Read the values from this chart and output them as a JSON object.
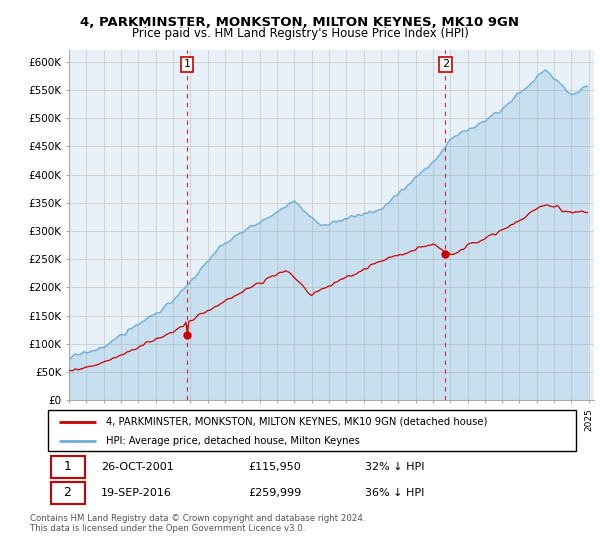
{
  "title": "4, PARKMINSTER, MONKSTON, MILTON KEYNES, MK10 9GN",
  "subtitle": "Price paid vs. HM Land Registry's House Price Index (HPI)",
  "legend_line1": "4, PARKMINSTER, MONKSTON, MILTON KEYNES, MK10 9GN (detached house)",
  "legend_line2": "HPI: Average price, detached house, Milton Keynes",
  "annotation1_date": "26-OCT-2001",
  "annotation1_price": "£115,950",
  "annotation1_hpi": "32% ↓ HPI",
  "annotation2_date": "19-SEP-2016",
  "annotation2_price": "£259,999",
  "annotation2_hpi": "36% ↓ HPI",
  "footer": "Contains HM Land Registry data © Crown copyright and database right 2024.\nThis data is licensed under the Open Government Licence v3.0.",
  "sale1_year": 2001.82,
  "sale1_value": 115950,
  "sale2_year": 2016.72,
  "sale2_value": 259999,
  "hpi_color": "#6baed6",
  "hpi_fill_color": "#ddeeff",
  "sale_color": "#cc0000",
  "annotation_box_color": "#cc0000",
  "ylim_min": 0,
  "ylim_max": 620000,
  "background_color": "#ffffff",
  "grid_color": "#cccccc",
  "chart_bg_color": "#e8f0f8"
}
